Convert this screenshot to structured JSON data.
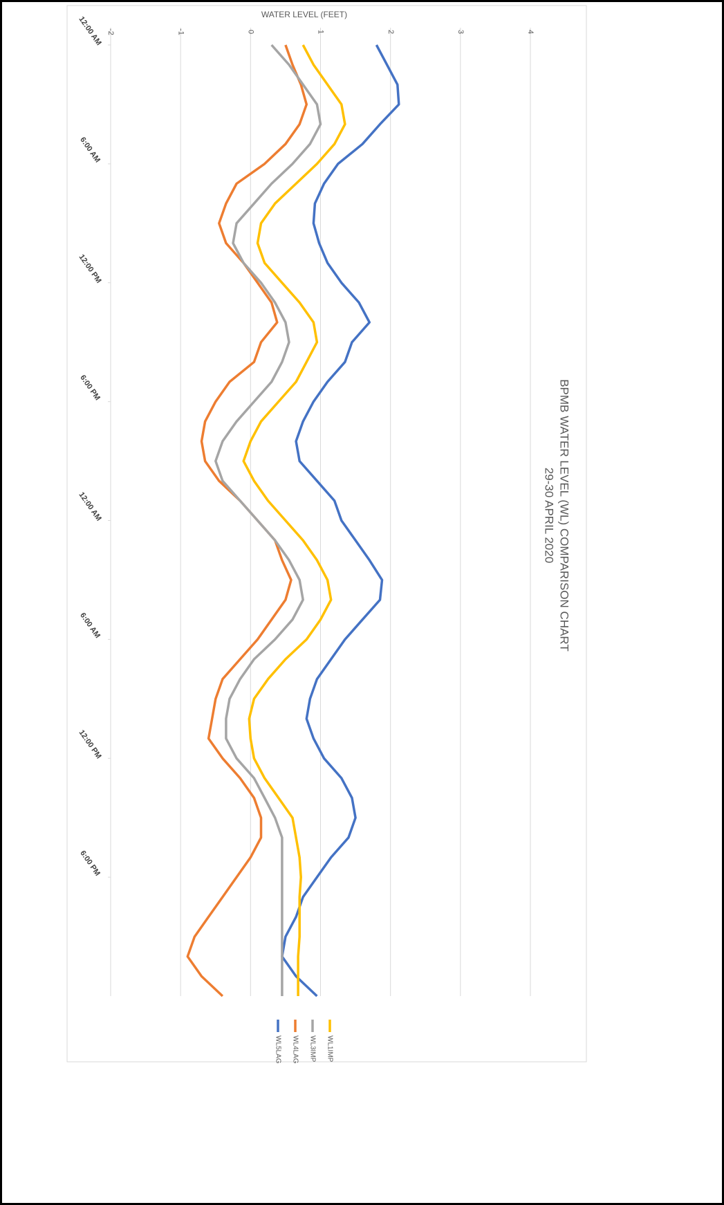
{
  "chart_data": {
    "type": "line",
    "title": "BPMB WATER LEVEL (WL) COMPARISON CHART",
    "subtitle": "29-30 APRIL 2020",
    "y_label": "WATER LEVEL (FEET)",
    "x": [
      0,
      1,
      2,
      3,
      4,
      5,
      6,
      7,
      8,
      9,
      10,
      11,
      12,
      13,
      14,
      15,
      16,
      17,
      18,
      19,
      20,
      21,
      22,
      23,
      24,
      25,
      26,
      27,
      28,
      29,
      30,
      31,
      32,
      33,
      34,
      35,
      36,
      37,
      38,
      39,
      40,
      41,
      42,
      43,
      44,
      45,
      46,
      47,
      48
    ],
    "xlim": [
      0,
      48
    ],
    "xticks": [
      {
        "value": 0,
        "label": "12:00 AM"
      },
      {
        "value": 6,
        "label": "6:00 AM"
      },
      {
        "value": 12,
        "label": "12:00 PM"
      },
      {
        "value": 18,
        "label": "6:00 PM"
      },
      {
        "value": 24,
        "label": "12:00 AM"
      },
      {
        "value": 30,
        "label": "6:00 AM"
      },
      {
        "value": 36,
        "label": "12:00 PM"
      },
      {
        "value": 42,
        "label": "6:00 PM"
      }
    ],
    "ylim": [
      -2,
      4
    ],
    "yticks": [
      -2,
      -1,
      0,
      1,
      2,
      3,
      4
    ],
    "grid": true,
    "legend": "bottom",
    "series": [
      {
        "name": "WL5LAG",
        "color": "#4472c4",
        "values": [
          1.8,
          1.95,
          2.1,
          2.12,
          1.85,
          1.6,
          1.25,
          1.05,
          0.92,
          0.9,
          0.98,
          1.1,
          1.3,
          1.55,
          1.7,
          1.45,
          1.35,
          1.1,
          0.9,
          0.75,
          0.65,
          0.7,
          0.95,
          1.2,
          1.3,
          1.5,
          1.7,
          1.88,
          1.85,
          1.6,
          1.35,
          1.15,
          0.95,
          0.85,
          0.8,
          0.9,
          1.05,
          1.3,
          1.45,
          1.5,
          1.4,
          1.15,
          0.95,
          0.75,
          0.65,
          0.5,
          0.45,
          0.65,
          0.95
        ]
      },
      {
        "name": "WL4LAG",
        "color": "#ed7d31",
        "values": [
          0.5,
          0.6,
          0.72,
          0.8,
          0.7,
          0.5,
          0.2,
          -0.2,
          -0.35,
          -0.45,
          -0.35,
          -0.1,
          0.1,
          0.3,
          0.38,
          0.15,
          0.05,
          -0.3,
          -0.5,
          -0.65,
          -0.7,
          -0.65,
          -0.45,
          -0.15,
          0.1,
          0.35,
          0.45,
          0.58,
          0.5,
          0.3,
          0.1,
          -0.15,
          -0.4,
          -0.5,
          -0.55,
          -0.6,
          -0.4,
          -0.15,
          0.05,
          0.15,
          0.15,
          0,
          -0.2,
          -0.4,
          -0.6,
          -0.8,
          -0.9,
          -0.7,
          -0.4
        ]
      },
      {
        "name": "WL3IMP",
        "color": "#a5a5a5",
        "values": [
          0.3,
          0.55,
          0.75,
          0.95,
          1.0,
          0.85,
          0.6,
          0.3,
          0.05,
          -0.2,
          -0.25,
          -0.1,
          0.15,
          0.35,
          0.5,
          0.55,
          0.45,
          0.3,
          0.05,
          -0.2,
          -0.4,
          -0.5,
          -0.4,
          -0.15,
          0.1,
          0.35,
          0.55,
          0.7,
          0.75,
          0.6,
          0.35,
          0.05,
          -0.15,
          -0.3,
          -0.35,
          -0.35,
          -0.2,
          0.05,
          0.2,
          0.35,
          0.45,
          0.45,
          0.45,
          0.45,
          0.45,
          0.45,
          0.45,
          0.45,
          0.45
        ]
      },
      {
        "name": "WL1IMP",
        "color": "#ffc000",
        "values": [
          0.75,
          0.9,
          1.1,
          1.3,
          1.35,
          1.2,
          0.95,
          0.65,
          0.35,
          0.15,
          0.1,
          0.2,
          0.45,
          0.7,
          0.9,
          0.95,
          0.8,
          0.65,
          0.4,
          0.15,
          0,
          -0.1,
          0.05,
          0.25,
          0.5,
          0.75,
          0.95,
          1.1,
          1.15,
          1.0,
          0.8,
          0.5,
          0.25,
          0.05,
          -0.02,
          0,
          0.05,
          0.2,
          0.4,
          0.6,
          0.65,
          0.7,
          0.72,
          0.7,
          0.7,
          0.7,
          0.68,
          0.68,
          0.68
        ]
      }
    ]
  }
}
